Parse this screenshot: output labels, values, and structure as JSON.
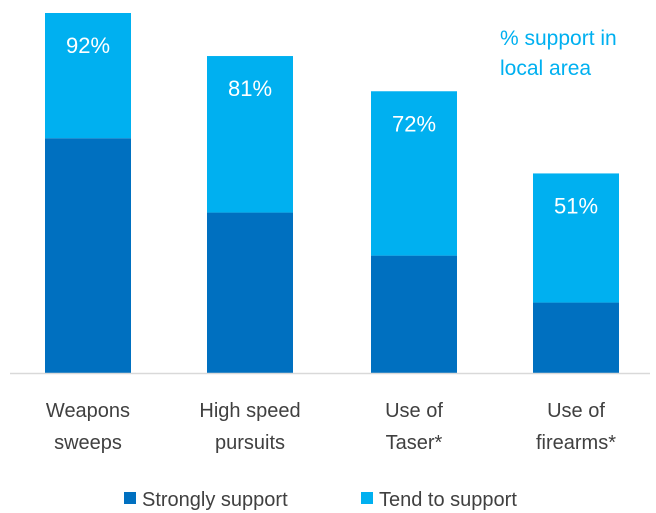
{
  "chart_data": {
    "type": "bar",
    "stacked": true,
    "categories": [
      [
        "Weapons",
        "sweeps"
      ],
      [
        "High speed",
        "pursuits"
      ],
      [
        "Use of",
        "Taser*"
      ],
      [
        "Use of",
        "firearms*"
      ]
    ],
    "series": [
      {
        "name": "Strongly support",
        "values": [
          60,
          41,
          30,
          18
        ],
        "color": "#0070C0"
      },
      {
        "name": "Tend to support",
        "values": [
          32,
          40,
          42,
          33
        ],
        "color": "#00B0F0"
      }
    ],
    "totals": [
      "92%",
      "81%",
      "72%",
      "51%"
    ],
    "total_values": [
      92,
      81,
      72,
      51
    ],
    "annotation": [
      "% support in",
      "local area"
    ],
    "annotation_color": "#00B0F0",
    "ylim": [
      0,
      100
    ],
    "grid": false,
    "legend": "bottom"
  }
}
